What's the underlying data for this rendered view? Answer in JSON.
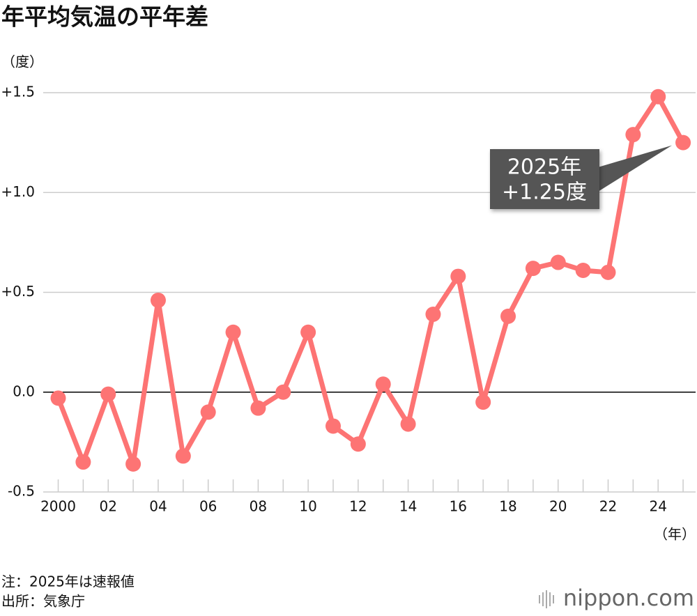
{
  "chart_data": {
    "type": "line",
    "title": "年平均気温の平年差",
    "y_label": "（度）",
    "x_label": "（年）",
    "annotation": [
      "2025年",
      "+1.25度"
    ],
    "notes": [
      "注：2025年は速報値",
      "出所：気象庁"
    ],
    "logo": "nippon.com",
    "x": [
      2000,
      2001,
      2002,
      2003,
      2004,
      2005,
      2006,
      2007,
      2008,
      2009,
      2010,
      2011,
      2012,
      2013,
      2014,
      2015,
      2016,
      2017,
      2018,
      2019,
      2020,
      2021,
      2022,
      2023,
      2024,
      2025
    ],
    "series": [
      {
        "color": "#fd7474",
        "values": [
          -0.03,
          -0.35,
          -0.01,
          -0.36,
          0.46,
          -0.32,
          -0.1,
          0.3,
          -0.08,
          0.0,
          0.3,
          -0.17,
          -0.26,
          0.04,
          -0.16,
          0.39,
          0.58,
          -0.05,
          0.38,
          0.62,
          0.65,
          0.61,
          0.6,
          1.29,
          1.48,
          1.25
        ]
      }
    ],
    "xlim": [
      1999.4,
      2025.5
    ],
    "xticks": [
      {
        "value": 2000,
        "label": "2000"
      },
      {
        "value": 2002,
        "label": "02"
      },
      {
        "value": 2004,
        "label": "04"
      },
      {
        "value": 2006,
        "label": "06"
      },
      {
        "value": 2008,
        "label": "08"
      },
      {
        "value": 2010,
        "label": "10"
      },
      {
        "value": 2012,
        "label": "12"
      },
      {
        "value": 2014,
        "label": "14"
      },
      {
        "value": 2016,
        "label": "16"
      },
      {
        "value": 2018,
        "label": "18"
      },
      {
        "value": 2020,
        "label": "20"
      },
      {
        "value": 2022,
        "label": "22"
      },
      {
        "value": 2024,
        "label": "24"
      }
    ],
    "ylim": [
      -0.5,
      1.5
    ],
    "yticks": [
      {
        "value": -0.5,
        "label": "-0.5"
      },
      {
        "value": 0,
        "label": "0.0"
      },
      {
        "value": 0.5,
        "label": "+0.5"
      },
      {
        "value": 1.0,
        "label": "+1.0"
      },
      {
        "value": 1.5,
        "label": "+1.5"
      }
    ],
    "grid": true
  }
}
